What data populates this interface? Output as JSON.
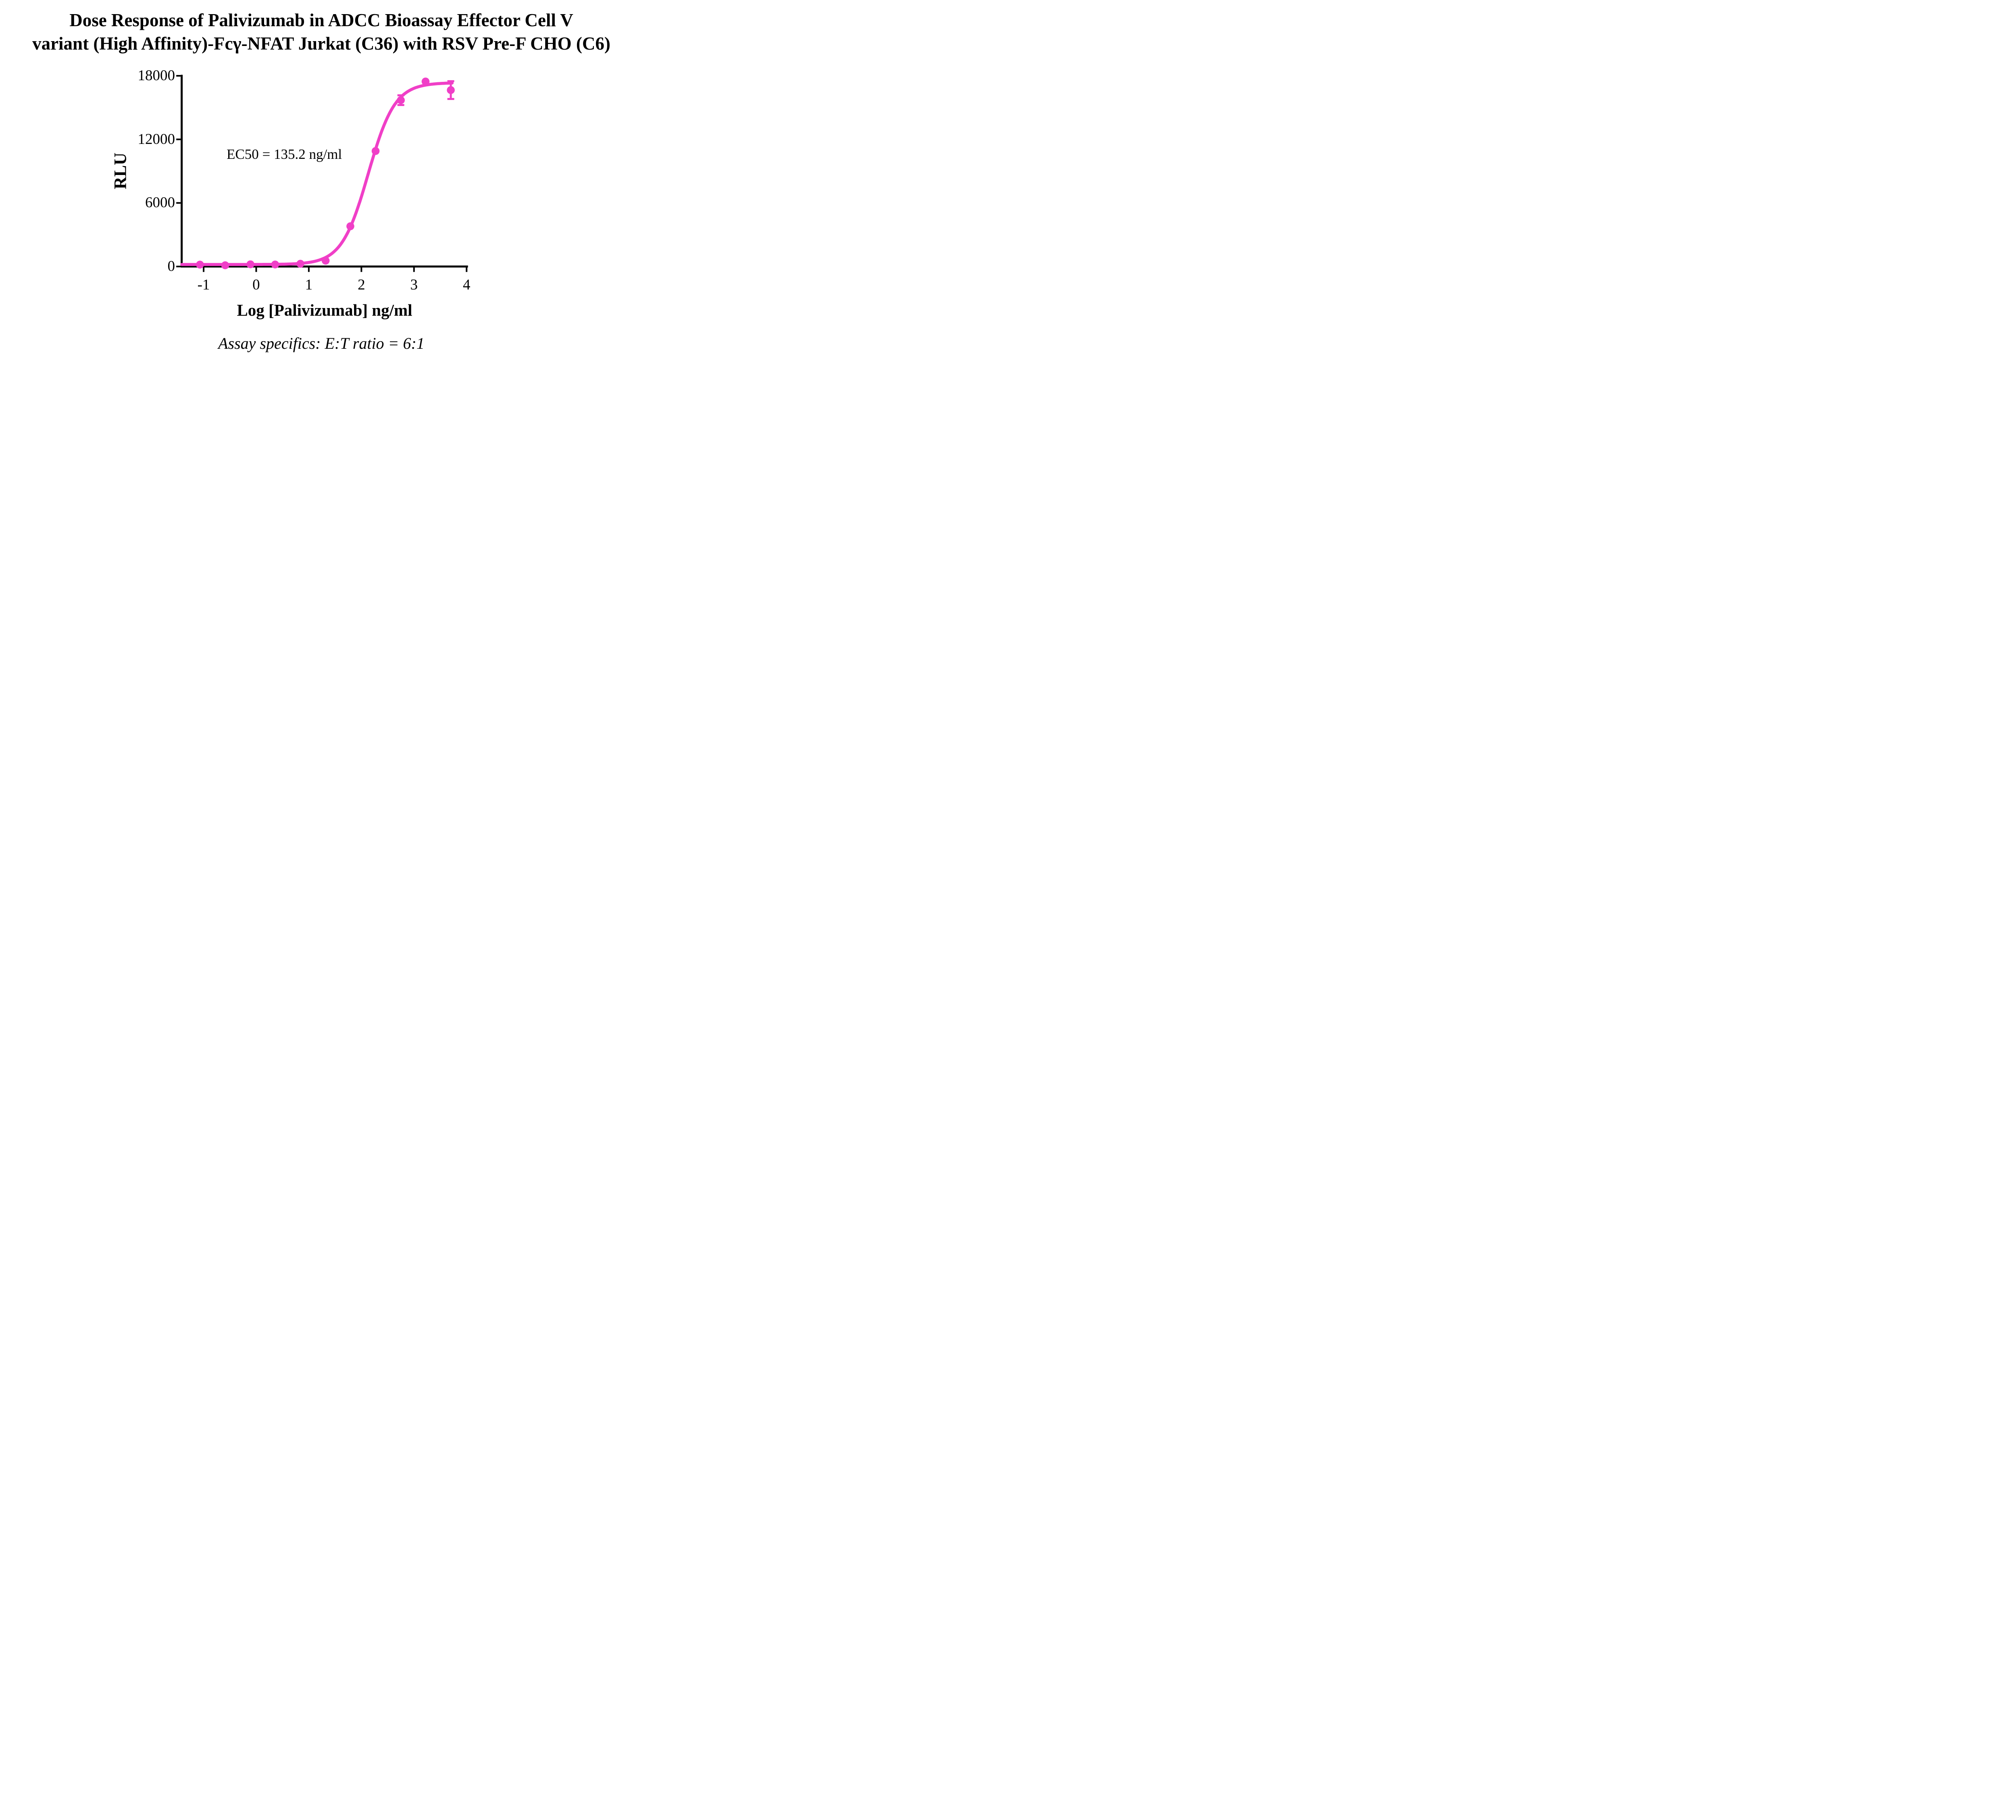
{
  "title": {
    "line1": "Dose Response of Palivizumab in ADCC Bioassay Effector Cell V",
    "line2": "variant (High Affinity)-Fcγ-NFAT Jurkat (C36) with RSV Pre-F CHO (C6)"
  },
  "annotation": {
    "ec50_label": "EC50 = 135.2 ng/ml"
  },
  "footer": {
    "text": "Assay specifics: E:T ratio = 6:1"
  },
  "colors": {
    "curve": "#F03FC7",
    "axis": "#000000",
    "text": "#000000",
    "background": "#FFFFFF"
  },
  "chart_data": {
    "type": "scatter",
    "title": "Dose Response of Palivizumab in ADCC Bioassay Effector Cell V variant (High Affinity)-Fcγ-NFAT Jurkat (C36) with RSV Pre-F CHO (C6)",
    "xlabel": "Log [Palivizumab] ng/ml",
    "ylabel": "RLU",
    "xlim": [
      -1.417,
      4.0
    ],
    "ylim": [
      0,
      18000
    ],
    "x_ticks": [
      -1,
      0,
      1,
      2,
      3,
      4
    ],
    "y_ticks": [
      0,
      6000,
      12000,
      18000
    ],
    "grid": false,
    "legend": "none",
    "annotation_ec50_ng_ml": 135.2,
    "series": [
      {
        "name": "Palivizumab",
        "color": "#F03FC7",
        "marker": "circle",
        "points": [
          {
            "x": -1.07,
            "y": 180
          },
          {
            "x": -0.59,
            "y": 115
          },
          {
            "x": -0.11,
            "y": 205
          },
          {
            "x": 0.36,
            "y": 190
          },
          {
            "x": 0.84,
            "y": 260
          },
          {
            "x": 1.32,
            "y": 550
          },
          {
            "x": 1.79,
            "y": 3800
          },
          {
            "x": 2.27,
            "y": 10900
          },
          {
            "x": 2.75,
            "y": 15700,
            "err": 460
          },
          {
            "x": 3.22,
            "y": 17460
          },
          {
            "x": 3.7,
            "y": 16650,
            "err": 840
          }
        ],
        "fit": {
          "model": "4PL",
          "bottom": 190,
          "top": 17350,
          "log_ec50": 2.131,
          "hill": 1.72,
          "x_start": -1.415,
          "x_end": 3.73
        }
      }
    ]
  }
}
